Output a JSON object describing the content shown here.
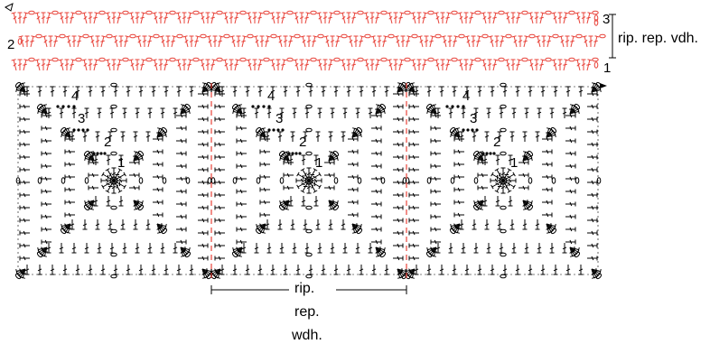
{
  "border": {
    "row_numbers": {
      "right_top": "3",
      "left_middle": "2",
      "right_bottom": "1"
    },
    "repeat_label": "rip. rep. vdh.",
    "color": "#e8433a"
  },
  "motif": {
    "round_numbers": [
      "1",
      "2",
      "3",
      "4"
    ],
    "repeat_count": 3,
    "color": "#000000",
    "divider_color": "#e8433a"
  },
  "bottom_repeat": {
    "line1": "rip.",
    "line2": "rep.",
    "line3": "wdh."
  }
}
